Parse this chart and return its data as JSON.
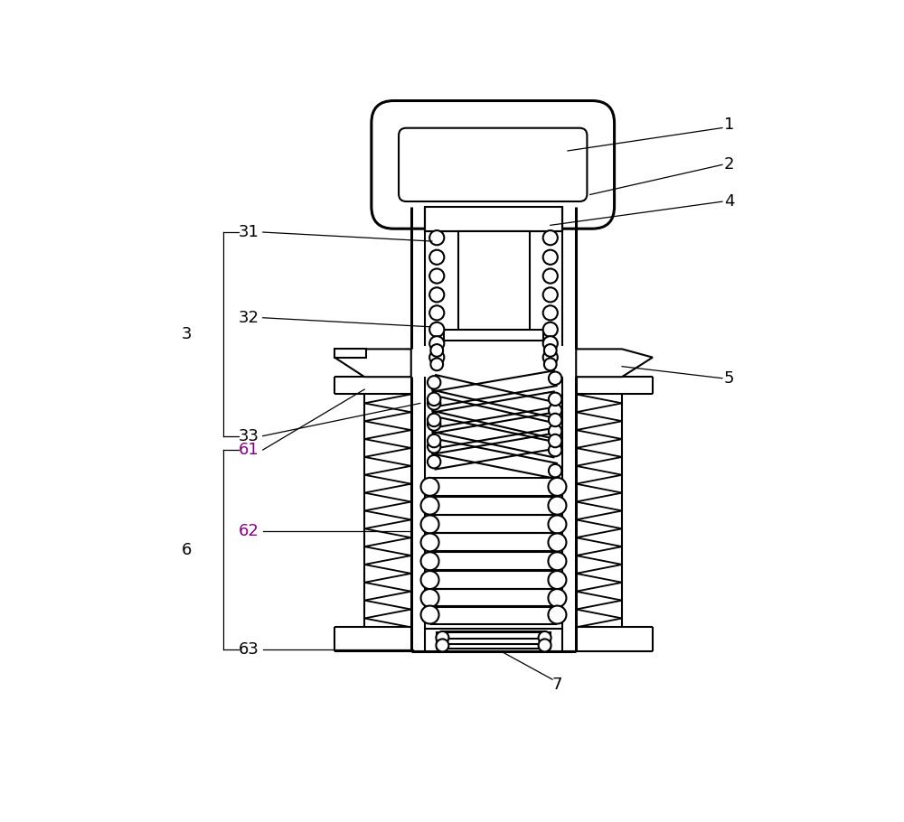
{
  "bg_color": "#ffffff",
  "line_color": "#000000",
  "lw": 1.5,
  "tlw": 2.2,
  "ann_lw": 0.9,
  "fs": 13,
  "fig_w": 10.0,
  "fig_h": 9.1
}
